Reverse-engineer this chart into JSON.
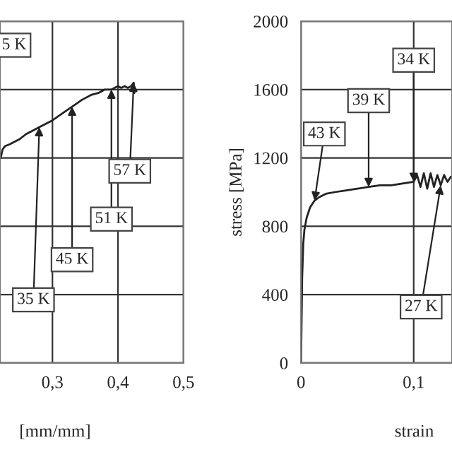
{
  "chart_data": [
    {
      "type": "line",
      "xlabel": "[mm/mm]",
      "xlim": [
        0.22,
        0.5
      ],
      "ylim": [
        0,
        2000
      ],
      "xticks": [
        {
          "value": 0.3,
          "label": "0,3"
        },
        {
          "value": 0.4,
          "label": "0,4"
        },
        {
          "value": 0.5,
          "label": "0,5"
        }
      ],
      "yticks": [
        0,
        400,
        800,
        1200,
        1600,
        2000
      ],
      "tick_labels": "x",
      "grid": true,
      "series": [
        {
          "color": "#222222",
          "x": [
            0.221,
            0.224,
            0.228,
            0.235,
            0.24,
            0.25,
            0.26,
            0.27,
            0.28,
            0.29,
            0.3,
            0.315,
            0.33,
            0.345,
            0.36,
            0.37,
            0.38,
            0.39,
            0.4,
            0.405,
            0.41,
            0.415,
            0.42,
            0.424,
            0.425
          ],
          "values": [
            1200,
            1250,
            1270,
            1280,
            1290,
            1310,
            1340,
            1360,
            1380,
            1400,
            1420,
            1460,
            1500,
            1540,
            1570,
            1580,
            1600,
            1600,
            1620,
            1610,
            1620,
            1610,
            1620,
            1640,
            1580
          ]
        }
      ],
      "annotations": [
        "5 K",
        {
          "text": "35 K",
          "x": 0.28,
          "y": 1380
        },
        {
          "text": "45 K",
          "x": 0.33,
          "y": 1500
        },
        {
          "text": "51 K",
          "x": 0.39,
          "y": 1600
        },
        {
          "text": "57 K",
          "x": 0.424,
          "y": 1640
        }
      ]
    },
    {
      "type": "line",
      "xlabel": "strain",
      "ylabel": "stress [MPa]",
      "xlim": [
        0,
        0.134
      ],
      "ylim": [
        0,
        2000
      ],
      "xticks": [
        0,
        {
          "value": 0.1,
          "label": "0,1"
        }
      ],
      "yticks": [
        0,
        400,
        800,
        1200,
        1600,
        2000
      ],
      "grid": true,
      "series": [
        {
          "color": "#222222",
          "x": [
            0,
            0.001,
            0.002,
            0.003,
            0.005,
            0.008,
            0.012,
            0.016,
            0.022,
            0.03,
            0.04,
            0.05,
            0.06,
            0.07,
            0.08,
            0.09,
            0.1,
            0.103,
            0.106,
            0.109,
            0.112,
            0.115,
            0.118,
            0.121,
            0.124,
            0.127,
            0.13,
            0.133
          ],
          "values": [
            0,
            500,
            700,
            780,
            850,
            910,
            950,
            970,
            990,
            1000,
            1010,
            1020,
            1030,
            1040,
            1040,
            1050,
            1060,
            1100,
            1030,
            1110,
            1020,
            1110,
            1030,
            1100,
            1040,
            1100,
            1060,
            1090
          ]
        }
      ],
      "annotations": [
        {
          "text": "43 K",
          "x": 0.012,
          "y": 950
        },
        {
          "text": "39 K",
          "x": 0.06,
          "y": 1030
        },
        {
          "text": "34 K",
          "x": 0.1,
          "y": 1060
        },
        {
          "text": "27 K",
          "x": 0.124,
          "y": 1040
        }
      ]
    }
  ]
}
